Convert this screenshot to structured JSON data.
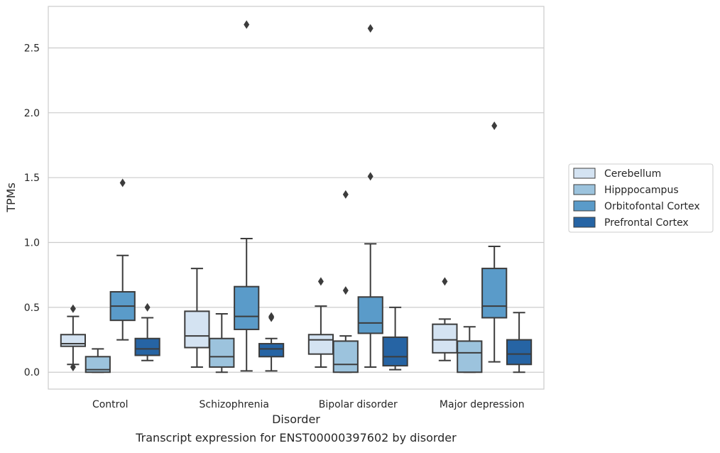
{
  "chart_data": {
    "type": "box",
    "title": "Transcript expression for ENST00000397602 by disorder",
    "xlabel": "Disorder",
    "ylabel": "TPMs",
    "ylim": [
      -0.13,
      2.82
    ],
    "yticks": [
      0.0,
      0.5,
      1.0,
      1.5,
      2.0,
      2.5
    ],
    "ytick_labels": [
      "0.0",
      "0.5",
      "1.0",
      "1.5",
      "2.0",
      "2.5"
    ],
    "categories": [
      "Control",
      "Schizophrenia",
      "Bipolar disorder",
      "Major depression"
    ],
    "grid": "horizontal",
    "legend_position": "right",
    "series": [
      {
        "name": "Cerebellum",
        "color": "#d4e3f2",
        "boxes": [
          {
            "q1": 0.2,
            "median": 0.22,
            "q3": 0.29,
            "whisker_low": 0.06,
            "whisker_high": 0.43,
            "outliers": [
              0.49,
              0.04
            ]
          },
          {
            "q1": 0.19,
            "median": 0.28,
            "q3": 0.47,
            "whisker_low": 0.04,
            "whisker_high": 0.8,
            "outliers": []
          },
          {
            "q1": 0.14,
            "median": 0.25,
            "q3": 0.29,
            "whisker_low": 0.04,
            "whisker_high": 0.51,
            "outliers": [
              0.7
            ]
          },
          {
            "q1": 0.15,
            "median": 0.25,
            "q3": 0.37,
            "whisker_low": 0.09,
            "whisker_high": 0.41,
            "outliers": [
              0.7
            ]
          }
        ]
      },
      {
        "name": "Hipppocampus",
        "color": "#9cc3dd",
        "boxes": [
          {
            "q1": 0.0,
            "median": 0.02,
            "q3": 0.12,
            "whisker_low": 0.0,
            "whisker_high": 0.18,
            "outliers": []
          },
          {
            "q1": 0.04,
            "median": 0.12,
            "q3": 0.26,
            "whisker_low": 0.0,
            "whisker_high": 0.45,
            "outliers": []
          },
          {
            "q1": 0.0,
            "median": 0.06,
            "q3": 0.24,
            "whisker_low": 0.0,
            "whisker_high": 0.28,
            "outliers": [
              1.37,
              0.63
            ]
          },
          {
            "q1": 0.0,
            "median": 0.15,
            "q3": 0.24,
            "whisker_low": 0.0,
            "whisker_high": 0.35,
            "outliers": []
          }
        ]
      },
      {
        "name": "Orbitofontal Cortex",
        "color": "#5a9bc9",
        "boxes": [
          {
            "q1": 0.4,
            "median": 0.51,
            "q3": 0.62,
            "whisker_low": 0.25,
            "whisker_high": 0.9,
            "outliers": [
              1.46
            ]
          },
          {
            "q1": 0.33,
            "median": 0.43,
            "q3": 0.66,
            "whisker_low": 0.01,
            "whisker_high": 1.03,
            "outliers": [
              2.68
            ]
          },
          {
            "q1": 0.3,
            "median": 0.38,
            "q3": 0.58,
            "whisker_low": 0.04,
            "whisker_high": 0.99,
            "outliers": [
              2.65,
              1.51
            ]
          },
          {
            "q1": 0.42,
            "median": 0.51,
            "q3": 0.8,
            "whisker_low": 0.08,
            "whisker_high": 0.97,
            "outliers": [
              1.9
            ]
          }
        ]
      },
      {
        "name": "Prefrontal Cortex",
        "color": "#2664a4",
        "boxes": [
          {
            "q1": 0.13,
            "median": 0.18,
            "q3": 0.26,
            "whisker_low": 0.09,
            "whisker_high": 0.42,
            "outliers": [
              0.5
            ]
          },
          {
            "q1": 0.12,
            "median": 0.18,
            "q3": 0.22,
            "whisker_low": 0.01,
            "whisker_high": 0.26,
            "outliers": [
              0.43,
              0.42
            ]
          },
          {
            "q1": 0.05,
            "median": 0.12,
            "q3": 0.27,
            "whisker_low": 0.02,
            "whisker_high": 0.5,
            "outliers": []
          },
          {
            "q1": 0.06,
            "median": 0.14,
            "q3": 0.25,
            "whisker_low": 0.0,
            "whisker_high": 0.46,
            "outliers": []
          }
        ]
      }
    ]
  }
}
